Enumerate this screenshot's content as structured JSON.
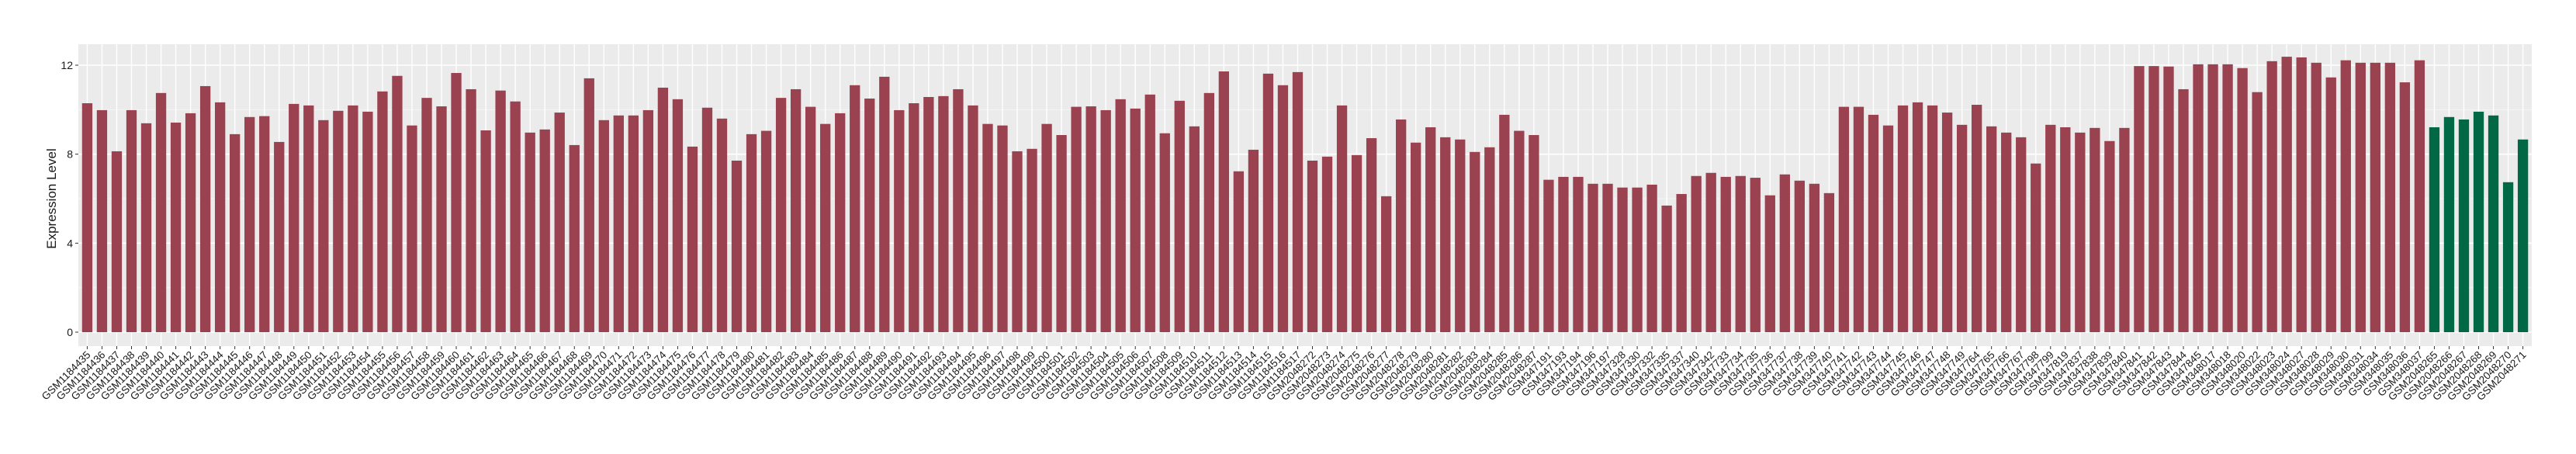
{
  "chart_data": {
    "type": "bar",
    "title": "",
    "xlabel": "",
    "ylabel": "Expression Level",
    "ylim": [
      -0.6,
      13
    ],
    "yticks": [
      0,
      4,
      8,
      12
    ],
    "grid": true,
    "legend": "none",
    "colors": {
      "group1": "#9A4250",
      "group2": "#006845",
      "panel": "#EBEBEB",
      "grid": "#FFFFFF"
    },
    "categories": [
      "GSM1184435",
      "GSM1184436",
      "GSM1184437",
      "GSM1184438",
      "GSM1184439",
      "GSM1184440",
      "GSM1184441",
      "GSM1184442",
      "GSM1184443",
      "GSM1184444",
      "GSM1184445",
      "GSM1184446",
      "GSM1184447",
      "GSM1184448",
      "GSM1184449",
      "GSM1184450",
      "GSM1184451",
      "GSM1184452",
      "GSM1184453",
      "GSM1184454",
      "GSM1184455",
      "GSM1184456",
      "GSM1184457",
      "GSM1184458",
      "GSM1184459",
      "GSM1184460",
      "GSM1184461",
      "GSM1184462",
      "GSM1184463",
      "GSM1184464",
      "GSM1184465",
      "GSM1184466",
      "GSM1184467",
      "GSM1184468",
      "GSM1184469",
      "GSM1184470",
      "GSM1184471",
      "GSM1184472",
      "GSM1184473",
      "GSM1184474",
      "GSM1184475",
      "GSM1184476",
      "GSM1184477",
      "GSM1184478",
      "GSM1184479",
      "GSM1184480",
      "GSM1184481",
      "GSM1184482",
      "GSM1184483",
      "GSM1184484",
      "GSM1184485",
      "GSM1184486",
      "GSM1184487",
      "GSM1184488",
      "GSM1184489",
      "GSM1184490",
      "GSM1184491",
      "GSM1184492",
      "GSM1184493",
      "GSM1184494",
      "GSM1184495",
      "GSM1184496",
      "GSM1184497",
      "GSM1184498",
      "GSM1184499",
      "GSM1184500",
      "GSM1184501",
      "GSM1184502",
      "GSM1184503",
      "GSM1184504",
      "GSM1184505",
      "GSM1184506",
      "GSM1184507",
      "GSM1184508",
      "GSM1184509",
      "GSM1184510",
      "GSM1184511",
      "GSM1184512",
      "GSM1184513",
      "GSM1184514",
      "GSM1184515",
      "GSM1184516",
      "GSM1184517",
      "GSM2048272",
      "GSM2048273",
      "GSM2048274",
      "GSM2048275",
      "GSM2048276",
      "GSM2048277",
      "GSM2048278",
      "GSM2048279",
      "GSM2048280",
      "GSM2048281",
      "GSM2048282",
      "GSM2048283",
      "GSM2048284",
      "GSM2048285",
      "GSM2048286",
      "GSM2048287",
      "GSM347191",
      "GSM347193",
      "GSM347194",
      "GSM347196",
      "GSM347197",
      "GSM347328",
      "GSM347330",
      "GSM347332",
      "GSM347335",
      "GSM347337",
      "GSM347340",
      "GSM347342",
      "GSM347733",
      "GSM347734",
      "GSM347735",
      "GSM347736",
      "GSM347737",
      "GSM347738",
      "GSM347739",
      "GSM347740",
      "GSM347741",
      "GSM347742",
      "GSM347743",
      "GSM347744",
      "GSM347745",
      "GSM347746",
      "GSM347747",
      "GSM347748",
      "GSM347749",
      "GSM347764",
      "GSM347765",
      "GSM347766",
      "GSM347767",
      "GSM347798",
      "GSM347799",
      "GSM347819",
      "GSM347837",
      "GSM347838",
      "GSM347839",
      "GSM347840",
      "GSM347841",
      "GSM347842",
      "GSM347843",
      "GSM347844",
      "GSM347845",
      "GSM348017",
      "GSM348018",
      "GSM348020",
      "GSM348022",
      "GSM348023",
      "GSM348024",
      "GSM348027",
      "GSM348028",
      "GSM348029",
      "GSM348030",
      "GSM348031",
      "GSM348034",
      "GSM348035",
      "GSM348036",
      "GSM348037",
      "GSM2048265",
      "GSM2048266",
      "GSM2048267",
      "GSM2048268",
      "GSM2048269",
      "GSM2048270",
      "GSM2048271"
    ],
    "values": [
      10.29,
      9.98,
      8.13,
      9.98,
      9.39,
      10.75,
      9.42,
      9.84,
      11.06,
      10.33,
      8.9,
      9.67,
      9.71,
      8.55,
      10.26,
      10.19,
      9.53,
      9.95,
      10.19,
      9.91,
      10.82,
      11.52,
      9.29,
      10.53,
      10.15,
      11.65,
      10.92,
      9.07,
      10.86,
      10.37,
      8.97,
      9.11,
      9.87,
      8.41,
      11.41,
      9.53,
      9.74,
      9.74,
      9.98,
      10.99,
      10.47,
      8.34,
      10.09,
      9.6,
      7.71,
      8.9,
      9.05,
      10.53,
      10.92,
      10.13,
      9.36,
      9.84,
      11.1,
      10.5,
      11.48,
      9.98,
      10.29,
      10.57,
      10.61,
      10.92,
      10.19,
      9.36,
      9.29,
      8.13,
      8.24,
      9.36,
      8.86,
      10.13,
      10.15,
      9.98,
      10.47,
      10.05,
      10.68,
      8.94,
      10.4,
      9.25,
      10.75,
      11.72,
      7.23,
      8.2,
      11.62,
      11.1,
      11.69,
      7.71,
      7.89,
      10.19,
      7.96,
      8.72,
      6.11,
      9.56,
      8.52,
      9.21,
      8.76,
      8.66,
      8.1,
      8.31,
      9.77,
      9.05,
      8.86,
      6.85,
      6.98,
      6.98,
      6.67,
      6.67,
      6.5,
      6.5,
      6.63,
      5.69,
      6.21,
      7.02,
      7.16,
      6.98,
      7.02,
      6.94,
      6.15,
      7.09,
      6.81,
      6.67,
      6.25,
      10.13,
      10.13,
      9.77,
      9.29,
      10.19,
      10.33,
      10.19,
      9.87,
      9.32,
      10.22,
      9.25,
      8.97,
      8.76,
      7.58,
      9.32,
      9.21,
      8.97,
      9.18,
      8.59,
      9.18,
      11.96,
      11.96,
      11.94,
      10.92,
      12.04,
      12.04,
      12.04,
      11.87,
      10.79,
      12.18,
      12.38,
      12.35,
      12.11,
      11.45,
      12.22,
      12.11,
      12.11,
      12.11,
      11.23,
      12.22,
      9.21,
      9.67,
      9.56,
      9.91,
      9.74,
      6.74,
      8.66
    ],
    "groups_count": {
      "group1": 159,
      "group2": 7
    }
  }
}
